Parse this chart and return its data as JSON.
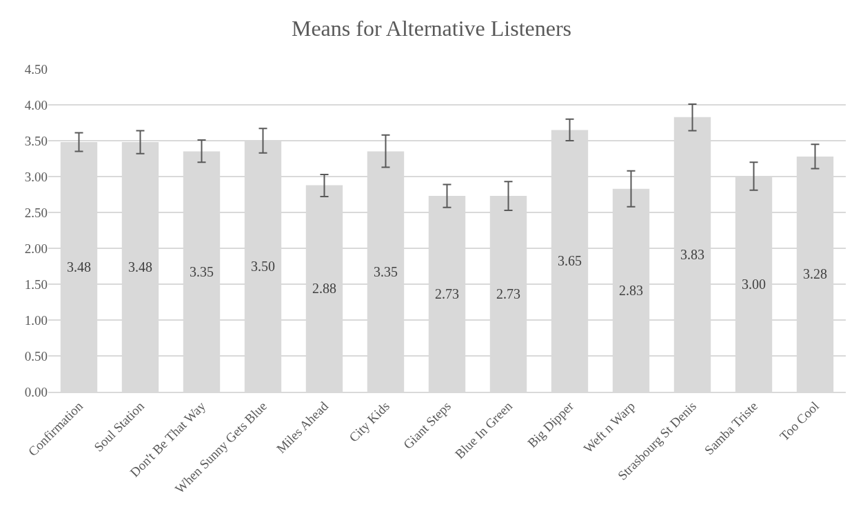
{
  "chart_data": {
    "type": "bar",
    "title": "Means for Alternative Listeners",
    "categories": [
      "Confirmation",
      "Soul Station",
      "Don't Be That Way",
      "When Sunny Gets Blue",
      "Miles Ahead",
      "City Kids",
      "Giant Steps",
      "Blue In Green",
      "Big Dipper",
      "Weft n Warp",
      "Strasbourg St Denis",
      "Samba Triste",
      "Too Cool"
    ],
    "values": [
      3.48,
      3.48,
      3.35,
      3.5,
      2.88,
      3.35,
      2.73,
      2.73,
      3.65,
      2.83,
      3.83,
      3.0,
      3.28
    ],
    "value_labels": [
      "3.48",
      "3.48",
      "3.35",
      "3.50",
      "2.88",
      "3.35",
      "2.73",
      "2.73",
      "3.65",
      "2.83",
      "3.83",
      "3.00",
      "3.28"
    ],
    "errors": [
      [
        3.35,
        3.61
      ],
      [
        3.32,
        3.64
      ],
      [
        3.2,
        3.51
      ],
      [
        3.33,
        3.67
      ],
      [
        2.72,
        3.03
      ],
      [
        3.13,
        3.58
      ],
      [
        2.57,
        2.89
      ],
      [
        2.53,
        2.93
      ],
      [
        3.5,
        3.8
      ],
      [
        2.58,
        3.08
      ],
      [
        3.64,
        4.01
      ],
      [
        2.81,
        3.2
      ],
      [
        3.11,
        3.45
      ]
    ],
    "color": "#d9d9d9",
    "ylim": [
      0,
      4.5
    ],
    "yticks": [
      {
        "value": 0,
        "label": "0.00"
      },
      {
        "value": 0.5,
        "label": "0.50"
      },
      {
        "value": 1,
        "label": "1.00"
      },
      {
        "value": 1.5,
        "label": "1.50"
      },
      {
        "value": 2,
        "label": "2.00"
      },
      {
        "value": 2.5,
        "label": "2.50"
      },
      {
        "value": 3,
        "label": "3.00"
      },
      {
        "value": 3.5,
        "label": "3.50"
      },
      {
        "value": 4,
        "label": "4.00"
      },
      {
        "value": 4.5,
        "label": "4.50"
      }
    ],
    "grid": "y"
  }
}
